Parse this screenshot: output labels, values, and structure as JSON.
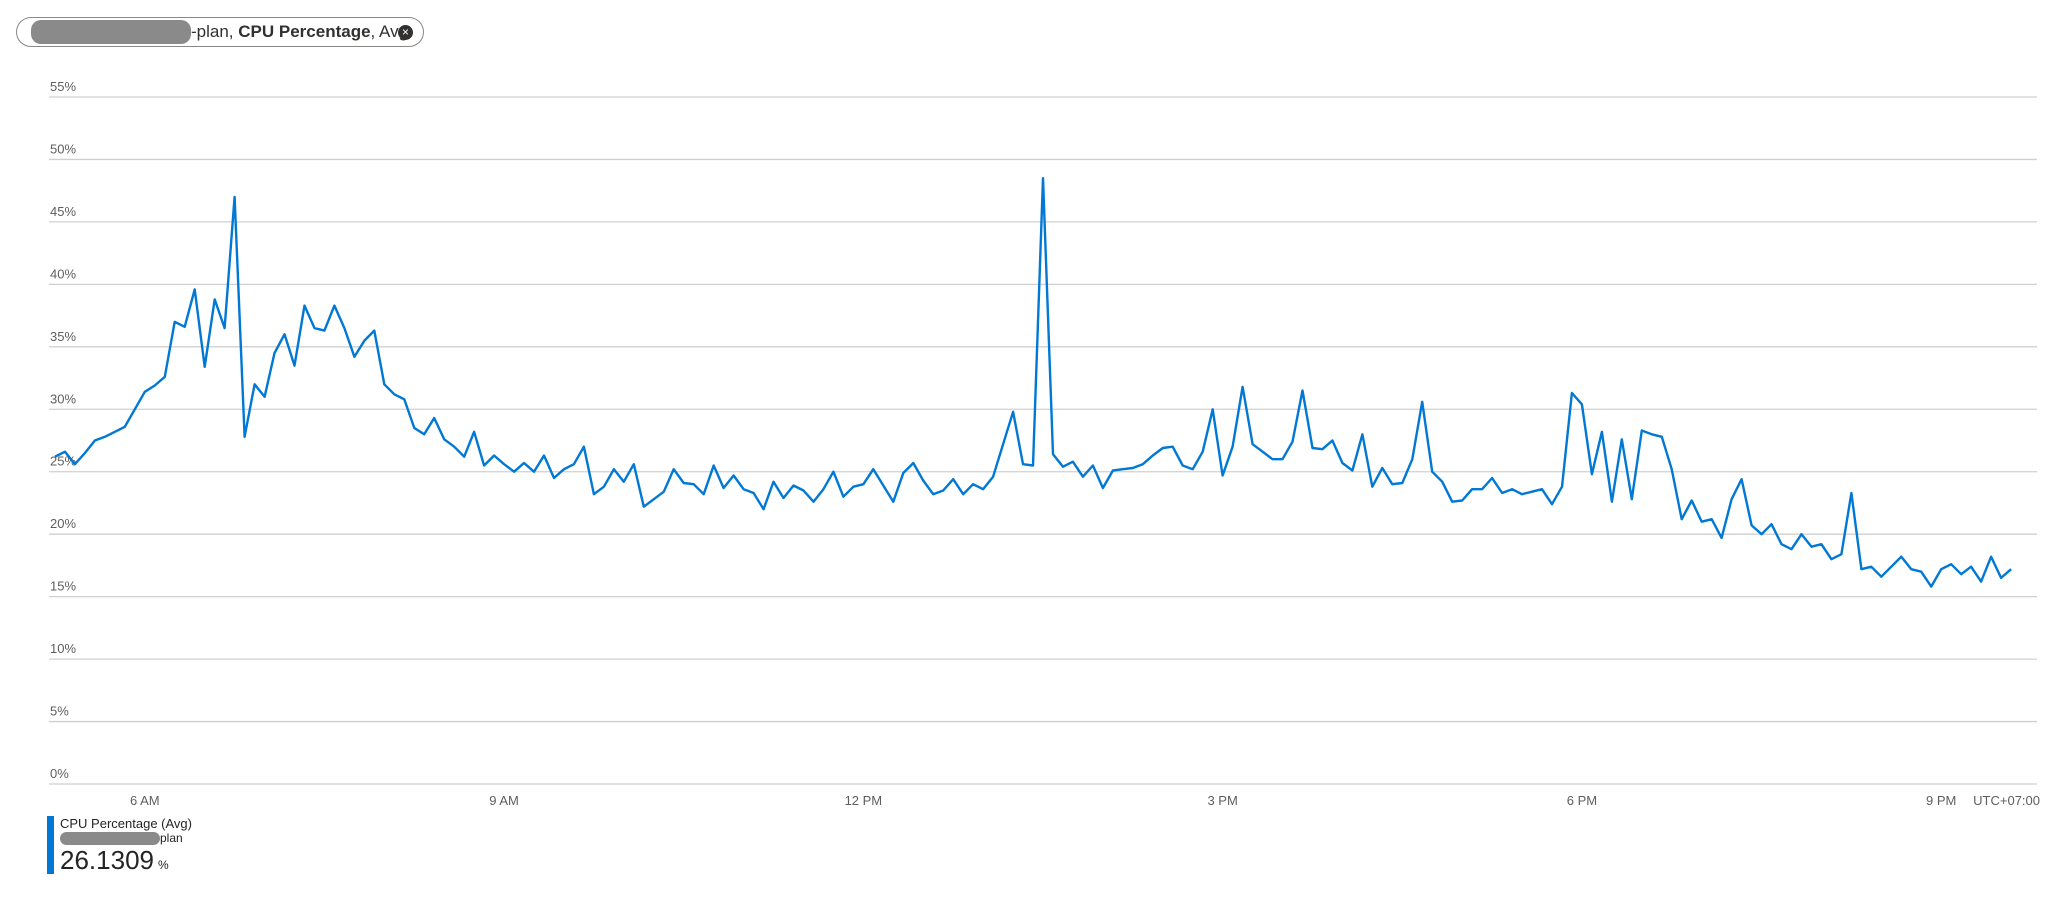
{
  "chart_data": {
    "type": "line",
    "filter_chip": {
      "resource_suffix": "-plan,",
      "metric": "CPU Percentage",
      "aggregation": ", Avg"
    },
    "x": [
      315,
      320,
      325,
      330,
      335,
      340,
      345,
      350,
      355,
      360,
      365,
      370,
      375,
      380,
      385,
      390,
      395,
      400,
      405,
      410,
      415,
      420,
      425,
      430,
      435,
      440,
      445,
      450,
      455,
      460,
      465,
      470,
      475,
      480,
      485,
      490,
      495,
      500,
      505,
      510,
      515,
      520,
      525,
      530,
      535,
      540,
      545,
      550,
      555,
      560,
      565,
      570,
      575,
      580,
      585,
      590,
      595,
      600,
      605,
      610,
      615,
      620,
      625,
      630,
      635,
      640,
      645,
      650,
      655,
      660,
      665,
      670,
      675,
      680,
      685,
      690,
      695,
      700,
      705,
      710,
      715,
      720,
      725,
      730,
      735,
      740,
      745,
      750,
      755,
      760,
      765,
      770,
      775,
      780,
      785,
      790,
      795,
      800,
      805,
      810,
      815,
      820,
      825,
      830,
      835,
      840,
      845,
      850,
      855,
      860,
      865,
      870,
      875,
      880,
      885,
      890,
      895,
      900,
      905,
      910,
      915,
      920,
      925,
      930,
      935,
      940,
      945,
      950,
      955,
      960,
      965,
      970,
      975,
      980,
      985,
      990,
      995,
      1000,
      1005,
      1010,
      1015,
      1020,
      1025,
      1030,
      1035,
      1040,
      1045,
      1050,
      1055,
      1060,
      1065,
      1070,
      1075,
      1080,
      1085,
      1090,
      1095,
      1100,
      1105,
      1110,
      1115,
      1120,
      1125,
      1130,
      1135,
      1140,
      1145,
      1150,
      1155,
      1160,
      1165,
      1170,
      1175,
      1180,
      1185,
      1190,
      1195,
      1200,
      1205,
      1210,
      1215,
      1220,
      1225,
      1230,
      1235,
      1240,
      1245,
      1250,
      1255,
      1260,
      1265,
      1270,
      1275,
      1280,
      1285,
      1290,
      1295
    ],
    "series": [
      {
        "name": "CPU Percentage (Avg)",
        "resource_suffix": "plan",
        "color": "#0078d4",
        "values": [
          26.2,
          26.6,
          25.6,
          26.5,
          27.5,
          27.8,
          28.2,
          28.6,
          30,
          31.4,
          31.9,
          32.6,
          37,
          36.6,
          39.6,
          33.4,
          38.8,
          36.5,
          47,
          27.8,
          32,
          31,
          34.5,
          36,
          33.5,
          38.3,
          36.5,
          36.3,
          38.3,
          36.5,
          34.2,
          35.5,
          36.3,
          32,
          31.2,
          30.8,
          28.5,
          28,
          29.3,
          27.6,
          27,
          26.2,
          28.2,
          25.5,
          26.3,
          25.6,
          25,
          25.7,
          25,
          26.3,
          24.5,
          25.2,
          25.6,
          27,
          23.2,
          23.8,
          25.2,
          24.2,
          25.6,
          22.2,
          22.8,
          23.4,
          25.2,
          24.1,
          24,
          23.2,
          25.5,
          23.7,
          24.7,
          23.6,
          23.3,
          22,
          24.2,
          22.9,
          23.9,
          23.5,
          22.6,
          23.6,
          25,
          23,
          23.8,
          24,
          25.2,
          23.9,
          22.6,
          24.9,
          25.7,
          24.3,
          23.2,
          23.5,
          24.4,
          23.2,
          24,
          23.6,
          24.6,
          27.2,
          29.8,
          25.6,
          25.5,
          48.5,
          26.4,
          25.4,
          25.8,
          24.6,
          25.5,
          23.7,
          25.1,
          25.2,
          25.3,
          25.6,
          26.3,
          26.9,
          27,
          25.5,
          25.2,
          26.6,
          30,
          24.7,
          27,
          31.8,
          27.2,
          26.6,
          26,
          26,
          27.4,
          31.5,
          26.9,
          26.8,
          27.5,
          25.7,
          25.1,
          28,
          23.8,
          25.3,
          24,
          24.1,
          26,
          30.6,
          25,
          24.2,
          22.6,
          22.7,
          23.6,
          23.6,
          24.5,
          23.3,
          23.6,
          23.2,
          23.4,
          23.6,
          22.4,
          23.8,
          31.3,
          30.4,
          24.8,
          28.2,
          22.6,
          27.6,
          22.8,
          28.3,
          28,
          27.8,
          25.2,
          21.2,
          22.7,
          21,
          21.2,
          19.7,
          22.8,
          24.4,
          20.7,
          20,
          20.8,
          19.2,
          18.8,
          20,
          19,
          19.2,
          18,
          18.4,
          23.3,
          17.2,
          17.4,
          16.6,
          17.4,
          18.2,
          17.2,
          17,
          15.8,
          17.2,
          17.6,
          16.8,
          17.4,
          16.2,
          18.2,
          16.5,
          17.2
        ],
        "summary": 26.1309,
        "summary_unit": "%"
      }
    ],
    "xlim": [
      312,
      1308
    ],
    "xticks": [
      {
        "value": 360,
        "label": "6 AM"
      },
      {
        "value": 540,
        "label": "9 AM"
      },
      {
        "value": 720,
        "label": "12 PM"
      },
      {
        "value": 900,
        "label": "3 PM"
      },
      {
        "value": 1080,
        "label": "6 PM"
      },
      {
        "value": 1260,
        "label": "9 PM"
      }
    ],
    "x_axis_note": "UTC+07:00",
    "ylim": [
      0,
      55
    ],
    "yticks": [
      {
        "value": 0,
        "label": "0%"
      },
      {
        "value": 5,
        "label": "5%"
      },
      {
        "value": 10,
        "label": "10%"
      },
      {
        "value": 15,
        "label": "15%"
      },
      {
        "value": 20,
        "label": "20%"
      },
      {
        "value": 25,
        "label": "25%"
      },
      {
        "value": 30,
        "label": "30%"
      },
      {
        "value": 35,
        "label": "35%"
      },
      {
        "value": 40,
        "label": "40%"
      },
      {
        "value": 45,
        "label": "45%"
      },
      {
        "value": 50,
        "label": "50%"
      },
      {
        "value": 55,
        "label": "55%"
      }
    ],
    "grid": true
  }
}
